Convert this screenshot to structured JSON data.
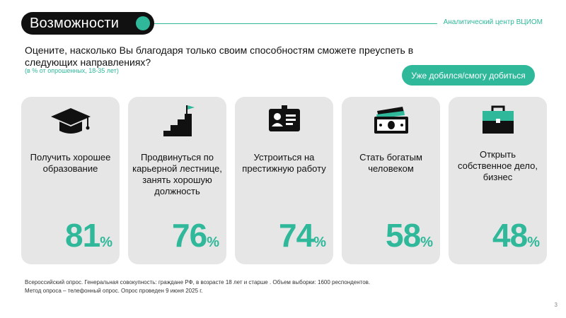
{
  "header": {
    "title": "Возможности",
    "org": "Аналитический центр ВЦИОМ"
  },
  "question": {
    "text": "Оцените, насколько Вы благодаря только своим способностям сможете преуспеть в следующих направлениях?",
    "note": "(в % от опрошенных, 18-35 лет)"
  },
  "legend": {
    "label": "Уже добился/смогу добиться"
  },
  "cards": [
    {
      "label": "Получить хорошее образование",
      "value": "81",
      "unit": "%",
      "icon": "graduation-cap-icon"
    },
    {
      "label": "Продвинуться по карьерной лестнице, занять хорошую должность",
      "value": "76",
      "unit": "%",
      "icon": "career-stairs-flag-icon"
    },
    {
      "label": "Устроиться на престижную работу",
      "value": "74",
      "unit": "%",
      "icon": "id-badge-icon"
    },
    {
      "label": "Стать богатым человеком",
      "value": "58",
      "unit": "%",
      "icon": "money-bills-icon"
    },
    {
      "label": "Открыть собственное дело, бизнес",
      "value": "48",
      "unit": "%",
      "icon": "briefcase-icon"
    }
  ],
  "footer": {
    "line1": "Всероссийский опрос. Генеральная совокупность: граждане РФ, в возрасте 18 лет и старше . Объем выборки: 1600 респондентов.",
    "line2": "Метод опроса – телефонный опрос. Опрос проведен 9 июня 2025 г."
  },
  "page_number": "3",
  "colors": {
    "accent": "#2fb89a",
    "card_bg": "#e6e6e6",
    "header_bg": "#111111"
  }
}
